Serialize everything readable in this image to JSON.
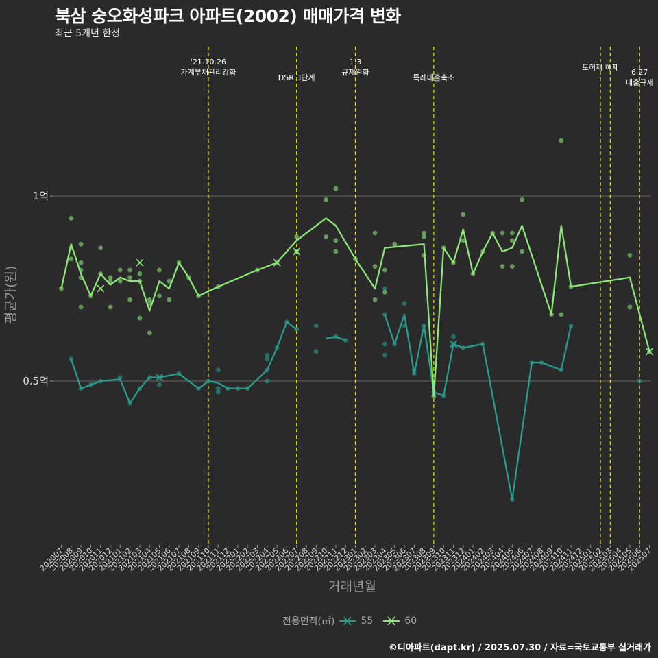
{
  "title": "북삼 숭오화성파크 아파트(2002) 매매가격 변화",
  "subtitle": "최근 5개년 한정",
  "caption": "©디아파트(dapt.kr) / 2025.07.30 / 자료=국토교통부 실거래가",
  "colors": {
    "background": "#2a2a2b",
    "gridline": "#5a5a5a",
    "event_line": "#e8e800",
    "series_55": "#2a9d8f",
    "series_60": "#8ee67a"
  },
  "chart_data": {
    "type": "line",
    "xlabel": "거래년월",
    "ylabel": "평균가(원)",
    "y_unit_note": "values in 억원",
    "ylim": [
      0.08,
      1.31
    ],
    "y_ticks": [
      {
        "value": 1.0,
        "label": "1억"
      },
      {
        "value": 0.5,
        "label": "0.5억"
      }
    ],
    "grid": "horizontal",
    "legend": {
      "title": "전용면적(㎡)",
      "position": "bottom",
      "entries": [
        "55",
        "60"
      ]
    },
    "x_categories": [
      "202007",
      "202008",
      "202009",
      "202010",
      "202011",
      "202012",
      "202101",
      "202102",
      "202103",
      "202104",
      "202105",
      "202106",
      "202107",
      "202108",
      "202109",
      "202110",
      "202111",
      "202112",
      "202201",
      "202202",
      "202203",
      "202204",
      "202205",
      "202206",
      "202207",
      "202208",
      "202209",
      "202210",
      "202211",
      "202212",
      "202301",
      "202302",
      "202303",
      "202304",
      "202305",
      "202306",
      "202307",
      "202308",
      "202309",
      "202310",
      "202311",
      "202312",
      "202401",
      "202402",
      "202403",
      "202404",
      "202405",
      "202406",
      "202407",
      "202408",
      "202409",
      "202410",
      "202411",
      "202412",
      "202501",
      "202502",
      "202503",
      "202504",
      "202505",
      "202506",
      "202507"
    ],
    "series": [
      {
        "name": "55",
        "line": [
          [
            "202008",
            0.56
          ],
          [
            "202009",
            0.48
          ],
          [
            "202010",
            0.49
          ],
          [
            "202011",
            0.5
          ],
          [
            "202101",
            0.505
          ],
          [
            "202102",
            0.44
          ],
          [
            "202103",
            0.48
          ],
          [
            "202104",
            0.51
          ],
          [
            "202105",
            0.51
          ],
          [
            "202107",
            0.52
          ],
          [
            "202109",
            0.48
          ],
          [
            "202110",
            0.5
          ],
          [
            "202111",
            0.495
          ],
          [
            "202112",
            0.48
          ],
          [
            "202201",
            0.48
          ],
          [
            "202202",
            0.48
          ],
          [
            "202204",
            0.53
          ],
          [
            "202205",
            0.59
          ],
          [
            "202206",
            0.66
          ],
          [
            "202207",
            0.64
          ],
          null,
          [
            "202210",
            0.615
          ],
          [
            "202211",
            0.62
          ],
          [
            "202212",
            0.61
          ],
          null,
          [
            "202304",
            0.68
          ],
          [
            "202305",
            0.6
          ],
          [
            "202306",
            0.68
          ],
          [
            "202307",
            0.52
          ],
          [
            "202308",
            0.65
          ],
          [
            "202309",
            0.47
          ],
          [
            "202310",
            0.46
          ],
          [
            "202311",
            0.6
          ],
          [
            "202312",
            0.59
          ],
          [
            "202402",
            0.6
          ],
          [
            "202405",
            0.18
          ],
          [
            "202407",
            0.55
          ],
          [
            "202408",
            0.55
          ],
          [
            "202410",
            0.53
          ],
          [
            "202411",
            0.65
          ]
        ],
        "points": [
          [
            "202008",
            0.56
          ],
          [
            "202009",
            0.48
          ],
          [
            "202010",
            0.49
          ],
          [
            "202011",
            0.5
          ],
          [
            "202101",
            0.51
          ],
          [
            "202102",
            0.44
          ],
          [
            "202103",
            0.48
          ],
          [
            "202104",
            0.51
          ],
          [
            "202105",
            0.49
          ],
          [
            "202105",
            0.51
          ],
          [
            "202107",
            0.52
          ],
          [
            "202109",
            0.48
          ],
          [
            "202110",
            0.5
          ],
          [
            "202111",
            0.47
          ],
          [
            "202111",
            0.48
          ],
          [
            "202111",
            0.53
          ],
          [
            "202112",
            0.48
          ],
          [
            "202201",
            0.48
          ],
          [
            "202202",
            0.48
          ],
          [
            "202204",
            0.5
          ],
          [
            "202204",
            0.53
          ],
          [
            "202204",
            0.56
          ],
          [
            "202204",
            0.57
          ],
          [
            "202205",
            0.59
          ],
          [
            "202206",
            0.66
          ],
          [
            "202207",
            0.64
          ],
          [
            "202209",
            0.58
          ],
          [
            "202209",
            0.65
          ],
          [
            "202211",
            0.62
          ],
          [
            "202212",
            0.61
          ],
          [
            "202304",
            0.57
          ],
          [
            "202304",
            0.6
          ],
          [
            "202304",
            0.68
          ],
          [
            "202304",
            0.75
          ],
          [
            "202305",
            0.6
          ],
          [
            "202306",
            0.65
          ],
          [
            "202306",
            0.71
          ],
          [
            "202307",
            0.52
          ],
          [
            "202307",
            0.53
          ],
          [
            "202308",
            0.65
          ],
          [
            "202309",
            0.47
          ],
          [
            "202310",
            0.46
          ],
          [
            "202311",
            0.6
          ],
          [
            "202311",
            0.62
          ],
          [
            "202312",
            0.59
          ],
          [
            "202402",
            0.6
          ],
          [
            "202405",
            0.18
          ],
          [
            "202407",
            0.55
          ],
          [
            "202408",
            0.55
          ],
          [
            "202410",
            0.53
          ],
          [
            "202411",
            0.65
          ],
          [
            "202506",
            0.5
          ]
        ],
        "crosses": [
          [
            "202105",
            0.51
          ],
          [
            "202311",
            0.6
          ]
        ]
      },
      {
        "name": "60",
        "line": [
          [
            "202007",
            0.75
          ],
          [
            "202008",
            0.87
          ],
          [
            "202009",
            0.79
          ],
          [
            "202010",
            0.73
          ],
          [
            "202011",
            0.79
          ],
          [
            "202012",
            0.76
          ],
          [
            "202101",
            0.78
          ],
          [
            "202102",
            0.77
          ],
          [
            "202103",
            0.77
          ],
          [
            "202104",
            0.69
          ],
          [
            "202105",
            0.77
          ],
          [
            "202106",
            0.75
          ],
          [
            "202107",
            0.82
          ],
          [
            "202108",
            0.78
          ],
          [
            "202109",
            0.73
          ],
          [
            "202111",
            0.755
          ],
          [
            "202203",
            0.8
          ],
          [
            "202205",
            0.82
          ],
          [
            "202207",
            0.88
          ],
          [
            "202210",
            0.94
          ],
          [
            "202211",
            0.92
          ],
          [
            "202301",
            0.83
          ],
          [
            "202303",
            0.75
          ],
          [
            "202304",
            0.86
          ],
          [
            "202308",
            0.87
          ],
          [
            "202309",
            0.46
          ],
          [
            "202310",
            0.86
          ],
          [
            "202311",
            0.82
          ],
          [
            "202312",
            0.91
          ],
          [
            "202401",
            0.79
          ],
          [
            "202402",
            0.85
          ],
          [
            "202403",
            0.9
          ],
          [
            "202404",
            0.85
          ],
          [
            "202405",
            0.86
          ],
          [
            "202406",
            0.92
          ],
          [
            "202409",
            0.68
          ],
          [
            "202410",
            0.92
          ],
          [
            "202411",
            0.755
          ],
          [
            "202505",
            0.78
          ],
          [
            "202507",
            0.58
          ]
        ],
        "points": [
          [
            "202007",
            0.75
          ],
          [
            "202008",
            0.83
          ],
          [
            "202008",
            0.86
          ],
          [
            "202008",
            0.94
          ],
          [
            "202009",
            0.7
          ],
          [
            "202009",
            0.78
          ],
          [
            "202009",
            0.8
          ],
          [
            "202009",
            0.82
          ],
          [
            "202009",
            0.87
          ],
          [
            "202010",
            0.73
          ],
          [
            "202011",
            0.79
          ],
          [
            "202011",
            0.86
          ],
          [
            "202012",
            0.7
          ],
          [
            "202012",
            0.77
          ],
          [
            "202012",
            0.78
          ],
          [
            "202101",
            0.77
          ],
          [
            "202101",
            0.8
          ],
          [
            "202102",
            0.72
          ],
          [
            "202102",
            0.78
          ],
          [
            "202102",
            0.8
          ],
          [
            "202103",
            0.67
          ],
          [
            "202103",
            0.77
          ],
          [
            "202103",
            0.79
          ],
          [
            "202104",
            0.63
          ],
          [
            "202104",
            0.71
          ],
          [
            "202104",
            0.72
          ],
          [
            "202105",
            0.73
          ],
          [
            "202105",
            0.8
          ],
          [
            "202106",
            0.72
          ],
          [
            "202106",
            0.77
          ],
          [
            "202107",
            0.82
          ],
          [
            "202108",
            0.78
          ],
          [
            "202109",
            0.73
          ],
          [
            "202111",
            0.755
          ],
          [
            "202203",
            0.8
          ],
          [
            "202205",
            0.82
          ],
          [
            "202207",
            0.85
          ],
          [
            "202207",
            0.89
          ],
          [
            "202210",
            0.89
          ],
          [
            "202210",
            0.99
          ],
          [
            "202211",
            0.85
          ],
          [
            "202211",
            0.88
          ],
          [
            "202211",
            1.02
          ],
          [
            "202301",
            0.83
          ],
          [
            "202303",
            0.72
          ],
          [
            "202303",
            0.81
          ],
          [
            "202303",
            0.9
          ],
          [
            "202304",
            0.74
          ],
          [
            "202304",
            0.8
          ],
          [
            "202305",
            0.87
          ],
          [
            "202308",
            0.84
          ],
          [
            "202308",
            0.89
          ],
          [
            "202308",
            0.9
          ],
          [
            "202309",
            0.46
          ],
          [
            "202310",
            0.86
          ],
          [
            "202311",
            0.82
          ],
          [
            "202312",
            0.88
          ],
          [
            "202312",
            0.95
          ],
          [
            "202401",
            0.79
          ],
          [
            "202402",
            0.85
          ],
          [
            "202403",
            0.9
          ],
          [
            "202404",
            0.81
          ],
          [
            "202404",
            0.9
          ],
          [
            "202405",
            0.81
          ],
          [
            "202405",
            0.88
          ],
          [
            "202405",
            0.9
          ],
          [
            "202406",
            0.85
          ],
          [
            "202406",
            0.99
          ],
          [
            "202409",
            0.68
          ],
          [
            "202410",
            0.68
          ],
          [
            "202410",
            1.15
          ],
          [
            "202411",
            0.755
          ],
          [
            "202505",
            0.7
          ],
          [
            "202505",
            0.84
          ],
          [
            "202507",
            0.58
          ]
        ],
        "crosses": [
          [
            "202103",
            0.82
          ],
          [
            "202011",
            0.75
          ],
          [
            "202205",
            0.82
          ],
          [
            "202207",
            0.85
          ],
          [
            "202507",
            0.58
          ]
        ]
      }
    ],
    "event_lines": [
      {
        "x": "202110",
        "label_lines": [
          "'21.10.26",
          "가계부채관리강화"
        ]
      },
      {
        "x": "202207",
        "label_lines": [
          "DSR 3단계"
        ]
      },
      {
        "x": "202301",
        "label_lines": [
          "1.3",
          "규제완화"
        ]
      },
      {
        "x": "202309",
        "label_lines": [
          "특례대출축소"
        ]
      },
      {
        "x": "202502",
        "label_lines": [
          "토허제 해제"
        ]
      },
      {
        "x": "202503",
        "label_lines": []
      },
      {
        "x": "202506",
        "label_lines": [
          "6.27",
          "대출규제"
        ]
      }
    ]
  }
}
